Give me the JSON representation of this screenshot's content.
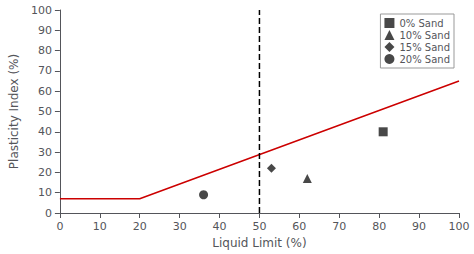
{
  "chart_data": {
    "type": "scatter",
    "xlabel": "Liquid Limit (%)",
    "ylabel": "Plasticity Index (%)",
    "xlim": [
      0,
      100
    ],
    "ylim": [
      0,
      100
    ],
    "xticks": [
      0,
      10,
      20,
      30,
      40,
      50,
      60,
      70,
      80,
      90,
      100
    ],
    "yticks": [
      0,
      10,
      20,
      30,
      40,
      50,
      60,
      70,
      80,
      90,
      100
    ],
    "grid": false,
    "legend": "upper right",
    "series": [
      {
        "type": "line",
        "color": "#cc0000",
        "line_style": "solid",
        "x": [
          0,
          20,
          100
        ],
        "values": [
          7,
          7,
          65
        ]
      },
      {
        "type": "line",
        "color": "#000000",
        "line_style": "dashed",
        "x": [
          50,
          50
        ],
        "values": [
          0,
          100
        ]
      },
      {
        "type": "scatter",
        "name": "0% Sand",
        "marker": "square",
        "color": "#1a1a1a",
        "x": [
          81
        ],
        "values": [
          40
        ]
      },
      {
        "type": "scatter",
        "name": "10% Sand",
        "marker": "triangle",
        "color": "#1a1a1a",
        "x": [
          62
        ],
        "values": [
          17
        ]
      },
      {
        "type": "scatter",
        "name": "15% Sand",
        "marker": "diamond",
        "color": "#1a1a1a",
        "x": [
          53
        ],
        "values": [
          22
        ]
      },
      {
        "type": "scatter",
        "name": "20% Sand",
        "marker": "circle",
        "color": "#1a1a1a",
        "x": [
          36
        ],
        "values": [
          9
        ]
      }
    ]
  }
}
